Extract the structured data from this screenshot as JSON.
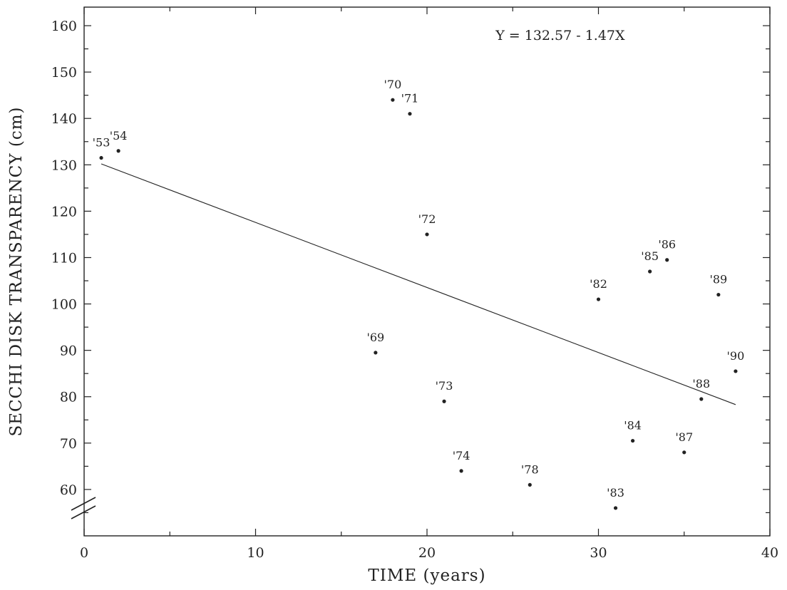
{
  "chart_data": {
    "type": "scatter",
    "xlabel": "TIME (years)",
    "ylabel": "SECCHI DISK TRANSPARENCY (cm)",
    "xlim": [
      0,
      40
    ],
    "ylim": [
      50,
      164
    ],
    "x_ticks": [
      0,
      10,
      20,
      30,
      40
    ],
    "y_ticks": [
      60,
      70,
      80,
      90,
      100,
      110,
      120,
      130,
      140,
      150,
      160
    ],
    "y_axis_break": true,
    "grid": false,
    "annotation": "Y = 132.57 - 1.47X",
    "fit_line": {
      "x": [
        1,
        38
      ],
      "y": [
        130.2,
        78.3
      ]
    },
    "points": [
      {
        "label": "'53",
        "x": 1,
        "y": 131.5
      },
      {
        "label": "'54",
        "x": 2,
        "y": 133
      },
      {
        "label": "'69",
        "x": 17,
        "y": 89.5
      },
      {
        "label": "'70",
        "x": 18,
        "y": 144
      },
      {
        "label": "'71",
        "x": 19,
        "y": 141
      },
      {
        "label": "'72",
        "x": 20,
        "y": 115
      },
      {
        "label": "'73",
        "x": 21,
        "y": 79
      },
      {
        "label": "'74",
        "x": 22,
        "y": 64
      },
      {
        "label": "'78",
        "x": 26,
        "y": 61
      },
      {
        "label": "'82",
        "x": 30,
        "y": 101
      },
      {
        "label": "'83",
        "x": 31,
        "y": 56
      },
      {
        "label": "'84",
        "x": 32,
        "y": 70.5
      },
      {
        "label": "'85",
        "x": 33,
        "y": 107
      },
      {
        "label": "'86",
        "x": 34,
        "y": 109.5
      },
      {
        "label": "'87",
        "x": 35,
        "y": 68
      },
      {
        "label": "'88",
        "x": 36,
        "y": 79.5
      },
      {
        "label": "'89",
        "x": 37,
        "y": 102
      },
      {
        "label": "'90",
        "x": 38,
        "y": 85.5
      }
    ]
  }
}
